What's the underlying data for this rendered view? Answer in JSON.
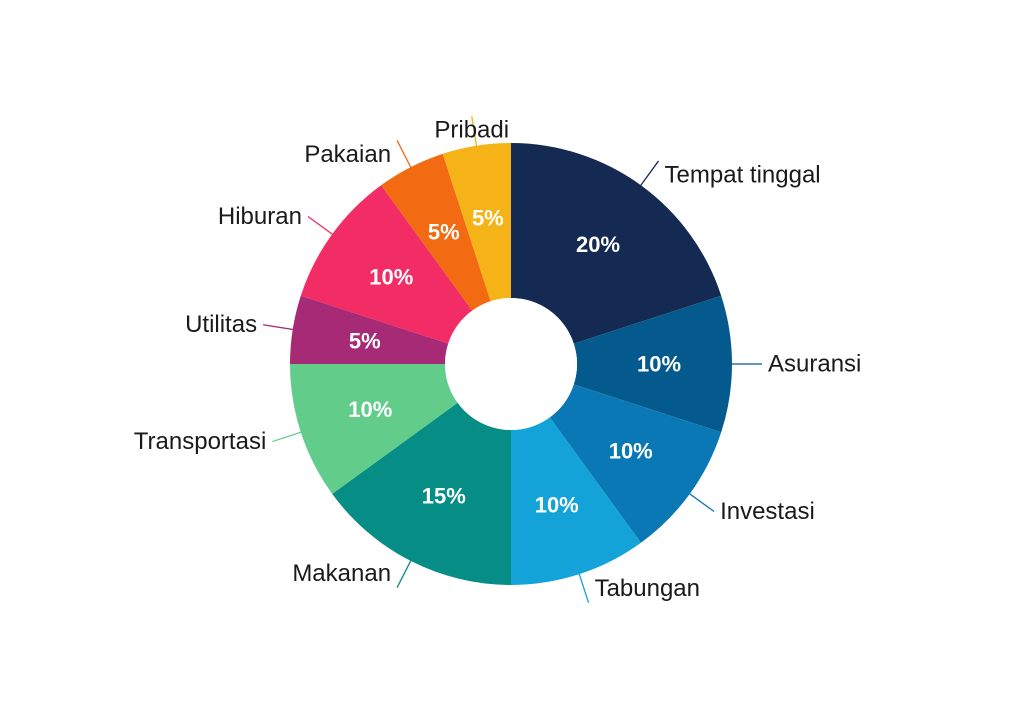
{
  "chart_data": {
    "type": "pie",
    "donut": true,
    "title": "",
    "categories": [
      "Tempat tinggal",
      "Asuransi",
      "Investasi",
      "Tabungan",
      "Makanan",
      "Transportasi",
      "Utilitas",
      "Hiburan",
      "Pakaian",
      "Pribadi"
    ],
    "values": [
      20,
      10,
      10,
      10,
      15,
      10,
      5,
      10,
      5,
      5
    ],
    "value_labels": [
      "20%",
      "10%",
      "10%",
      "10%",
      "15%",
      "10%",
      "5%",
      "10%",
      "5%",
      "5%"
    ],
    "colors": [
      "#152a52",
      "#045a8d",
      "#0a78b4",
      "#13a3d8",
      "#068d85",
      "#62cc8a",
      "#a62a75",
      "#f22c65",
      "#f26a12",
      "#f5b318"
    ],
    "label_text_colors": [
      "#ffffff",
      "#ffffff",
      "#ffffff",
      "#ffffff",
      "#ffffff",
      "#ffffff",
      "#ffffff",
      "#ffffff",
      "#ffffff",
      "#ffffff"
    ],
    "start": "12 o'clock",
    "direction": "clockwise",
    "legend": "none"
  }
}
